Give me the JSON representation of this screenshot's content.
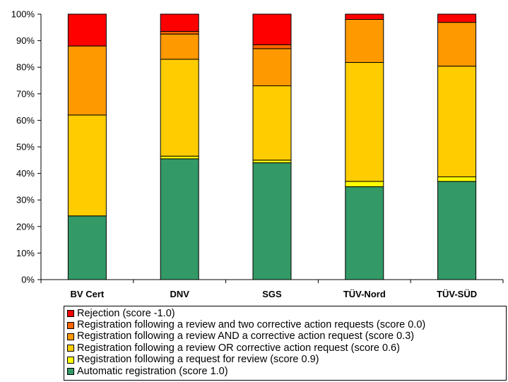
{
  "chart_data": {
    "type": "bar",
    "stacked": true,
    "percent": true,
    "categories": [
      "BV Cert",
      "DNV",
      "SGS",
      "TÜV-Nord",
      "TÜV-SÜD"
    ],
    "y_ticks": [
      "0%",
      "10%",
      "20%",
      "30%",
      "40%",
      "50%",
      "60%",
      "70%",
      "80%",
      "90%",
      "100%"
    ],
    "ylim": [
      0,
      100
    ],
    "grid": false,
    "legend_position": "bottom",
    "series": [
      {
        "name": "Automatic registration (score 1.0)",
        "color": "#339966",
        "values": [
          24,
          45.5,
          44,
          35,
          37
        ]
      },
      {
        "name": "Registration following a request for review (score 0.9)",
        "color": "#FFFF00",
        "values": [
          0,
          1,
          1,
          2,
          1.7
        ]
      },
      {
        "name": "Registration following a review OR corrective action request (score 0.6)",
        "color": "#FFCC00",
        "values": [
          38,
          36.5,
          28,
          44.8,
          41.7
        ]
      },
      {
        "name": "Registration following a review AND a corrective action request (score 0.3)",
        "color": "#FF9900",
        "values": [
          26,
          9.5,
          14,
          16.2,
          16.5
        ]
      },
      {
        "name": "Registration following a review and two corrective action requests (score 0.0)",
        "color": "#FF6600",
        "values": [
          0,
          1,
          1.5,
          0,
          0
        ]
      },
      {
        "name": "Rejection (score -1.0)",
        "color": "#FF0000",
        "values": [
          12,
          6.5,
          11.5,
          2,
          3.1
        ]
      }
    ]
  }
}
